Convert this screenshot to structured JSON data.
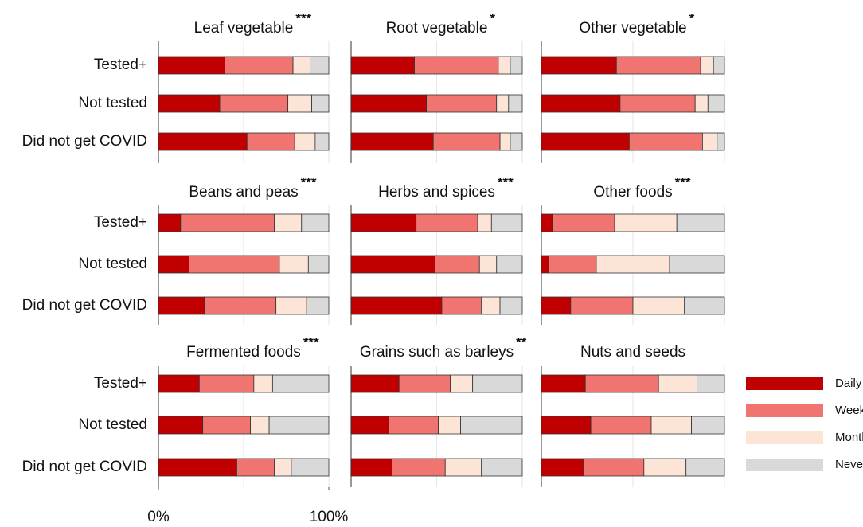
{
  "chart_data": [
    {
      "type": "stacked-bar",
      "title": "Leaf vegetable",
      "significance": "***",
      "categories": [
        "Tested+",
        "Not tested",
        "Did not get COVID"
      ],
      "values": [
        [
          39,
          40,
          10,
          11
        ],
        [
          36,
          40,
          14,
          10
        ],
        [
          52,
          28,
          12,
          8
        ]
      ],
      "xlim": [
        0,
        100
      ],
      "xgrid": [
        0,
        50,
        100
      ]
    },
    {
      "type": "stacked-bar",
      "title": "Root vegetable",
      "significance": "*",
      "values": [
        [
          37,
          49,
          7,
          7
        ],
        [
          44,
          41,
          7,
          8
        ],
        [
          48,
          39,
          6,
          7
        ]
      ],
      "xlim": [
        0,
        100
      ],
      "xgrid": [
        0,
        50,
        100
      ]
    },
    {
      "type": "stacked-bar",
      "title": "Other vegetable",
      "significance": "*",
      "values": [
        [
          41,
          46,
          7,
          6
        ],
        [
          43,
          41,
          7,
          9
        ],
        [
          48,
          40,
          8,
          4
        ]
      ],
      "xlim": [
        0,
        100
      ],
      "xgrid": [
        0,
        50,
        100
      ]
    },
    {
      "type": "stacked-bar",
      "title": "Beans and peas",
      "significance": "***",
      "categories": [
        "Tested+",
        "Not tested",
        "Did not get COVID"
      ],
      "values": [
        [
          13,
          55,
          16,
          16
        ],
        [
          18,
          53,
          17,
          12
        ],
        [
          27,
          42,
          18,
          13
        ]
      ],
      "xlim": [
        0,
        100
      ],
      "xgrid": [
        0,
        50,
        100
      ]
    },
    {
      "type": "stacked-bar",
      "title": "Herbs and spices",
      "significance": "***",
      "values": [
        [
          38,
          36,
          8,
          18
        ],
        [
          49,
          26,
          10,
          15
        ],
        [
          53,
          23,
          11,
          13
        ]
      ],
      "xlim": [
        0,
        100
      ],
      "xgrid": [
        0,
        50,
        100
      ]
    },
    {
      "type": "stacked-bar",
      "title": "Other foods",
      "significance": "***",
      "values": [
        [
          6,
          34,
          34,
          26
        ],
        [
          4,
          26,
          40,
          30
        ],
        [
          16,
          34,
          28,
          22
        ]
      ],
      "xlim": [
        0,
        100
      ],
      "xgrid": [
        0,
        50,
        100
      ]
    },
    {
      "type": "stacked-bar",
      "title": "Fermented foods",
      "significance": "***",
      "categories": [
        "Tested+",
        "Not tested",
        "Did not get COVID"
      ],
      "values": [
        [
          24,
          32,
          11,
          33
        ],
        [
          26,
          28,
          11,
          35
        ],
        [
          46,
          22,
          10,
          22
        ]
      ],
      "xlim": [
        0,
        100
      ],
      "xgrid": [
        0,
        50,
        100
      ],
      "xticks": [
        {
          "value": 0,
          "label": "0%"
        },
        {
          "value": 100,
          "label": "100%"
        }
      ]
    },
    {
      "type": "stacked-bar",
      "title": "Grains such as barleys",
      "significance": "**",
      "values": [
        [
          28,
          30,
          13,
          29
        ],
        [
          22,
          29,
          13,
          36
        ],
        [
          24,
          31,
          21,
          24
        ]
      ],
      "xlim": [
        0,
        100
      ],
      "xgrid": [
        0,
        50,
        100
      ]
    },
    {
      "type": "stacked-bar",
      "title": "Nuts and seeds",
      "values": [
        [
          24,
          40,
          21,
          15
        ],
        [
          27,
          33,
          22,
          18
        ],
        [
          23,
          33,
          23,
          21
        ]
      ],
      "xlim": [
        0,
        100
      ],
      "xgrid": [
        0,
        50,
        100
      ]
    }
  ],
  "legend": [
    {
      "name": "Daily",
      "color": "#c00000"
    },
    {
      "name": "Weekly",
      "color": "#f07470"
    },
    {
      "name": "Monthly",
      "color": "#fce4d6"
    },
    {
      "name": "Never",
      "color": "#d9d9d9"
    }
  ]
}
